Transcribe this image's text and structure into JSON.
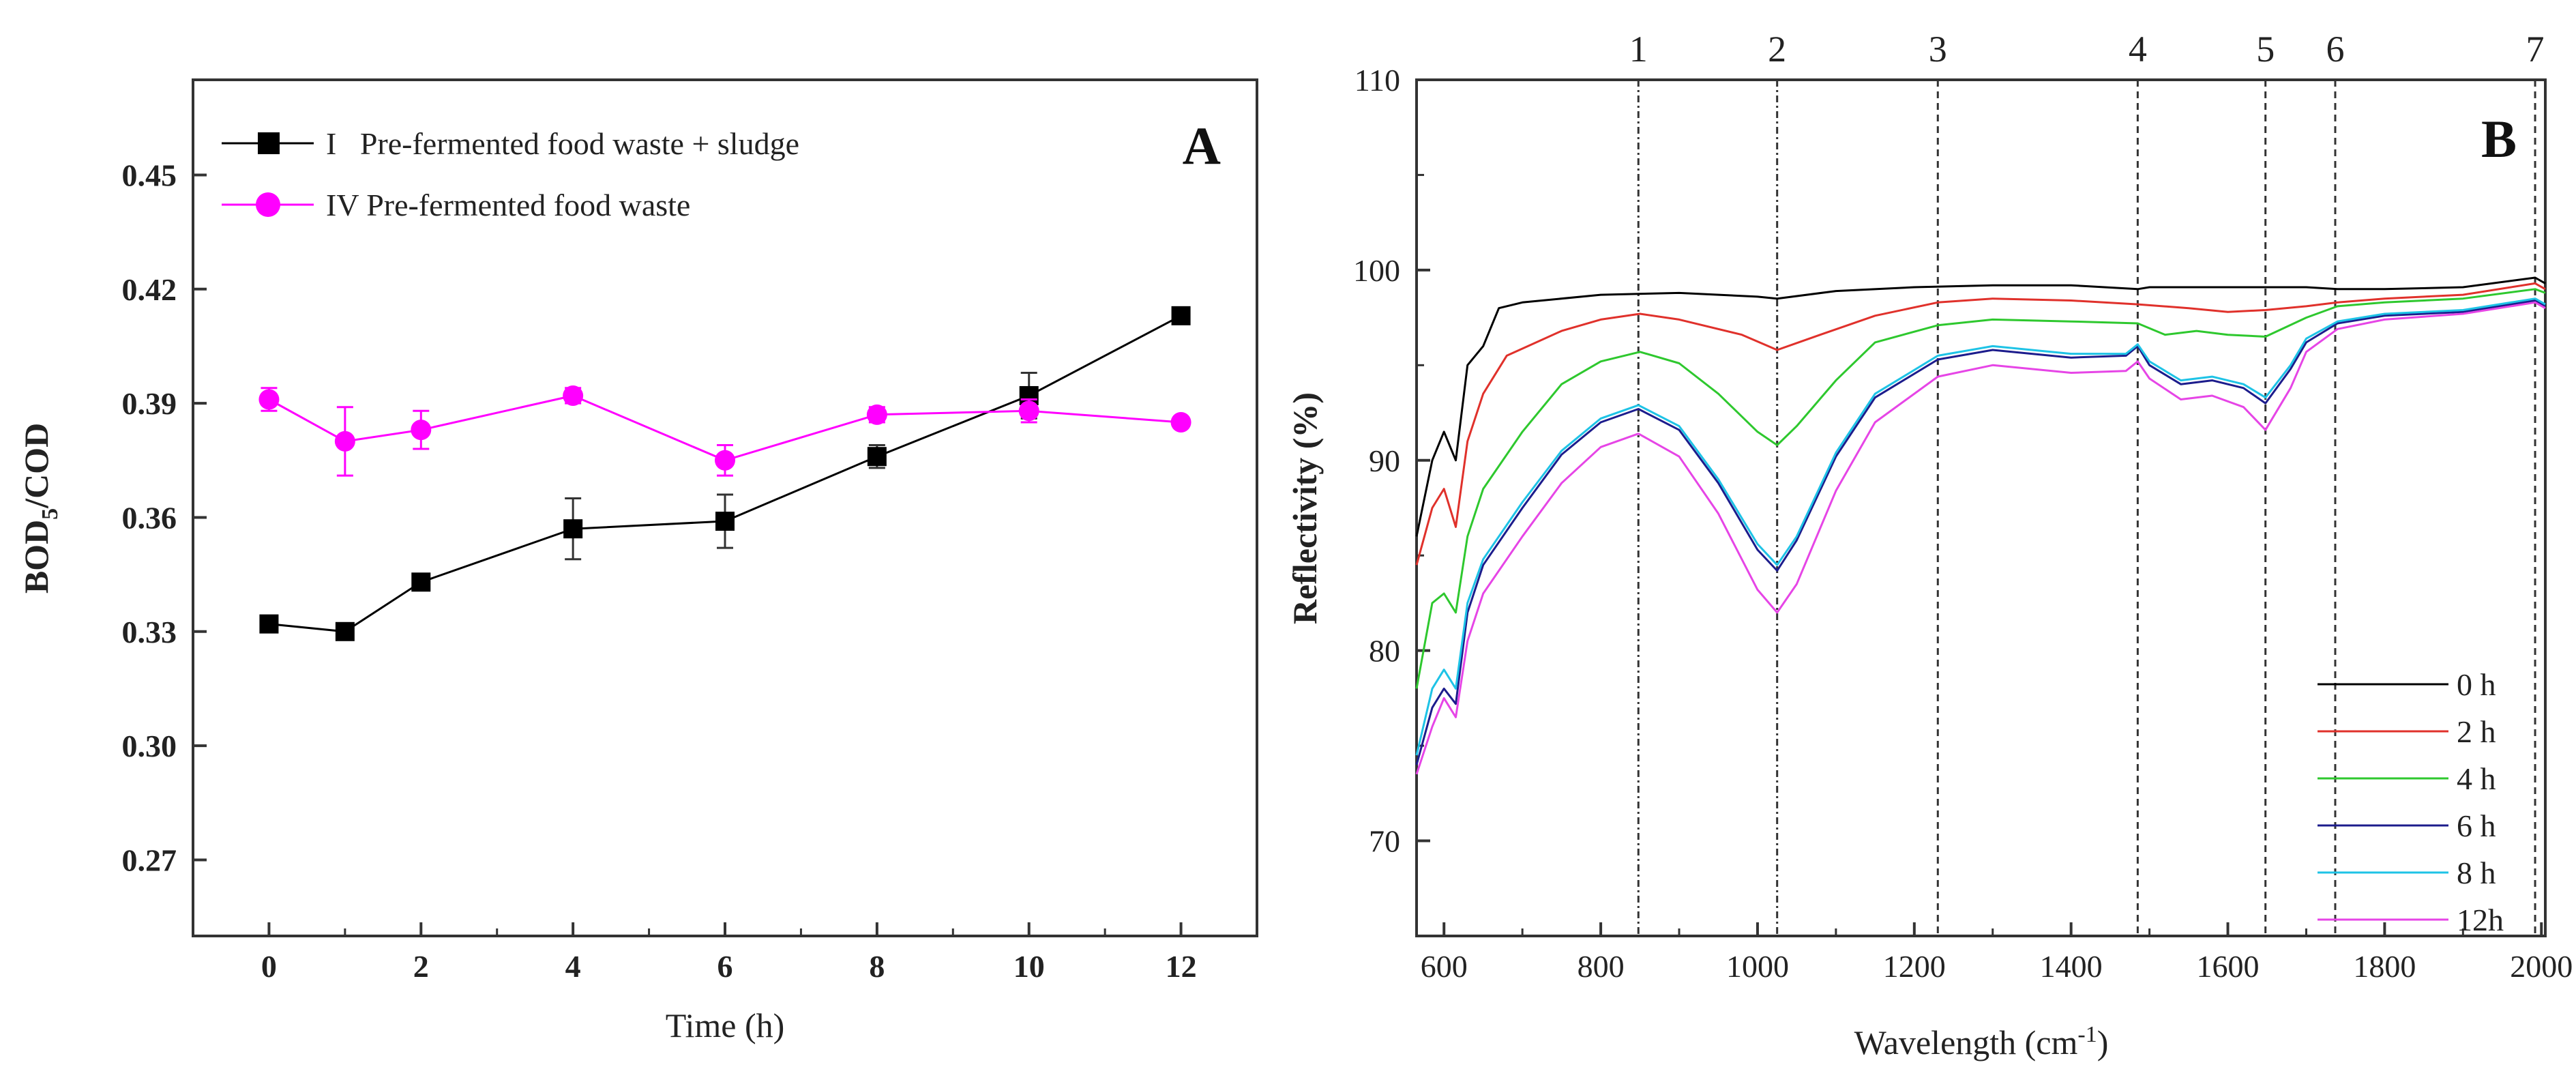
{
  "chart_data": [
    {
      "type": "line",
      "panel_label": "A",
      "xlabel": "Time (h)",
      "ylabel": "BOD5/COD",
      "ylabel_main": "BOD",
      "ylabel_sub": "5",
      "ylabel_tail": "/COD",
      "xlim": [
        -1,
        13
      ],
      "ylim": [
        0.25,
        0.475
      ],
      "xticks": [
        0,
        2,
        4,
        6,
        8,
        10,
        12
      ],
      "yticks": [
        0.27,
        0.3,
        0.33,
        0.36,
        0.39,
        0.42,
        0.45
      ],
      "ytick_labels": [
        "0.27",
        "0.30",
        "0.33",
        "0.36",
        "0.39",
        "0.42",
        "0.45"
      ],
      "legend_position": "top-left",
      "series": [
        {
          "name": "I   Pre-fermented food waste + sludge",
          "color": "#000000",
          "marker": "square",
          "x": [
            0,
            1,
            2,
            4,
            6,
            8,
            10,
            12
          ],
          "y": [
            0.332,
            0.33,
            0.343,
            0.357,
            0.359,
            0.376,
            0.392,
            0.413
          ],
          "err": [
            0.0,
            0.002,
            0.002,
            0.008,
            0.007,
            0.003,
            0.006,
            0.0
          ]
        },
        {
          "name": "IV Pre-fermented food waste",
          "color": "#ff00ff",
          "marker": "circle",
          "x": [
            0,
            1,
            2,
            4,
            6,
            8,
            10,
            12
          ],
          "y": [
            0.391,
            0.38,
            0.383,
            0.392,
            0.375,
            0.387,
            0.388,
            0.385
          ],
          "err": [
            0.003,
            0.009,
            0.005,
            0.002,
            0.004,
            0.002,
            0.003,
            0.0
          ]
        }
      ]
    },
    {
      "type": "line",
      "panel_label": "B",
      "xlabel": "Wavelength (cm-1)",
      "xlabel_main": "Wavelength (cm",
      "xlabel_sup": "-1",
      "xlabel_tail": ")",
      "ylabel": "Reflectivity (%)",
      "xlim": [
        565,
        2005
      ],
      "ylim": [
        65,
        110
      ],
      "xticks": [
        600,
        800,
        1000,
        1200,
        1400,
        1600,
        1800,
        2000
      ],
      "yticks": [
        70,
        80,
        90,
        100,
        110
      ],
      "legend_position": "bottom-right",
      "bands": [
        {
          "label": "1",
          "x": 848
        },
        {
          "label": "2",
          "x": 1025
        },
        {
          "label": "3",
          "x": 1230
        },
        {
          "label": "4",
          "x": 1485
        },
        {
          "label": "5",
          "x": 1648
        },
        {
          "label": "6",
          "x": 1737
        },
        {
          "label": "7",
          "x": 1992
        }
      ],
      "series": [
        {
          "name": "0 h",
          "color": "#000000",
          "x": [
            565,
            585,
            600,
            615,
            630,
            650,
            670,
            700,
            800,
            900,
            1000,
            1025,
            1100,
            1200,
            1300,
            1400,
            1485,
            1500,
            1560,
            1648,
            1700,
            1740,
            1800,
            1900,
            1992,
            2005
          ],
          "y": [
            86,
            90,
            91.5,
            90,
            95,
            96,
            98,
            98.3,
            98.7,
            98.8,
            98.6,
            98.5,
            98.9,
            99.1,
            99.2,
            99.2,
            99.0,
            99.1,
            99.1,
            99.1,
            99.1,
            99.0,
            99.0,
            99.1,
            99.6,
            99.3
          ]
        },
        {
          "name": "2 h",
          "color": "#e0312b",
          "x": [
            565,
            585,
            600,
            615,
            630,
            650,
            680,
            750,
            800,
            850,
            900,
            980,
            1025,
            1080,
            1150,
            1230,
            1300,
            1400,
            1485,
            1550,
            1600,
            1648,
            1700,
            1740,
            1800,
            1900,
            1992,
            2005
          ],
          "y": [
            84.5,
            87.5,
            88.5,
            86.5,
            91,
            93.5,
            95.5,
            96.8,
            97.4,
            97.7,
            97.4,
            96.6,
            95.8,
            96.6,
            97.6,
            98.3,
            98.5,
            98.4,
            98.2,
            98.0,
            97.8,
            97.9,
            98.1,
            98.3,
            98.5,
            98.7,
            99.3,
            99.0
          ]
        },
        {
          "name": "4 h",
          "color": "#2ec82e",
          "x": [
            565,
            585,
            600,
            615,
            630,
            650,
            700,
            750,
            800,
            850,
            900,
            950,
            1000,
            1025,
            1050,
            1100,
            1150,
            1230,
            1300,
            1400,
            1485,
            1520,
            1560,
            1600,
            1648,
            1700,
            1740,
            1800,
            1900,
            1992,
            2005
          ],
          "y": [
            78,
            82.5,
            83,
            82,
            86,
            88.5,
            91.5,
            94,
            95.2,
            95.7,
            95.1,
            93.5,
            91.5,
            90.8,
            91.8,
            94.2,
            96.2,
            97.1,
            97.4,
            97.3,
            97.2,
            96.6,
            96.8,
            96.6,
            96.5,
            97.5,
            98.1,
            98.3,
            98.5,
            99.0,
            98.8
          ]
        },
        {
          "name": "6 h",
          "color": "#1c1c8c",
          "x": [
            565,
            585,
            600,
            615,
            630,
            650,
            700,
            750,
            800,
            848,
            900,
            950,
            1000,
            1025,
            1050,
            1100,
            1150,
            1230,
            1300,
            1400,
            1470,
            1485,
            1500,
            1540,
            1580,
            1620,
            1648,
            1680,
            1700,
            1740,
            1800,
            1900,
            1992,
            2005
          ],
          "y": [
            74,
            77,
            78,
            77.2,
            82,
            84.5,
            87.5,
            90.3,
            92.0,
            92.7,
            91.6,
            88.8,
            85.3,
            84.2,
            85.8,
            90.2,
            93.3,
            95.3,
            95.8,
            95.4,
            95.5,
            96.0,
            95.0,
            94.0,
            94.2,
            93.8,
            93.0,
            94.8,
            96.2,
            97.2,
            97.6,
            97.8,
            98.4,
            98.1
          ]
        },
        {
          "name": "8 h",
          "color": "#1ec3e6",
          "x": [
            565,
            585,
            600,
            615,
            630,
            650,
            700,
            750,
            800,
            848,
            900,
            950,
            1000,
            1025,
            1050,
            1100,
            1150,
            1230,
            1300,
            1400,
            1470,
            1485,
            1500,
            1540,
            1580,
            1620,
            1648,
            1680,
            1700,
            1740,
            1800,
            1900,
            1992,
            2005
          ],
          "y": [
            74.5,
            78,
            79,
            78,
            82.5,
            84.8,
            87.8,
            90.5,
            92.2,
            92.9,
            91.8,
            89.0,
            85.6,
            84.5,
            86.0,
            90.4,
            93.5,
            95.5,
            96.0,
            95.6,
            95.6,
            96.1,
            95.2,
            94.2,
            94.4,
            94.0,
            93.3,
            95.0,
            96.4,
            97.3,
            97.7,
            97.9,
            98.5,
            98.2
          ]
        },
        {
          "name": "12h",
          "color": "#e645e6",
          "x": [
            565,
            585,
            600,
            615,
            630,
            650,
            700,
            750,
            800,
            848,
            900,
            950,
            1000,
            1025,
            1050,
            1100,
            1150,
            1230,
            1300,
            1400,
            1470,
            1485,
            1500,
            1540,
            1580,
            1620,
            1648,
            1680,
            1700,
            1740,
            1800,
            1900,
            1992,
            2005
          ],
          "y": [
            73.5,
            76,
            77.5,
            76.5,
            80.5,
            83,
            86,
            88.8,
            90.7,
            91.4,
            90.2,
            87.2,
            83.2,
            82.0,
            83.5,
            88.4,
            92.0,
            94.4,
            95.0,
            94.6,
            94.7,
            95.2,
            94.3,
            93.2,
            93.4,
            92.8,
            91.6,
            93.8,
            95.7,
            96.9,
            97.4,
            97.7,
            98.3,
            98.0
          ]
        }
      ]
    }
  ]
}
